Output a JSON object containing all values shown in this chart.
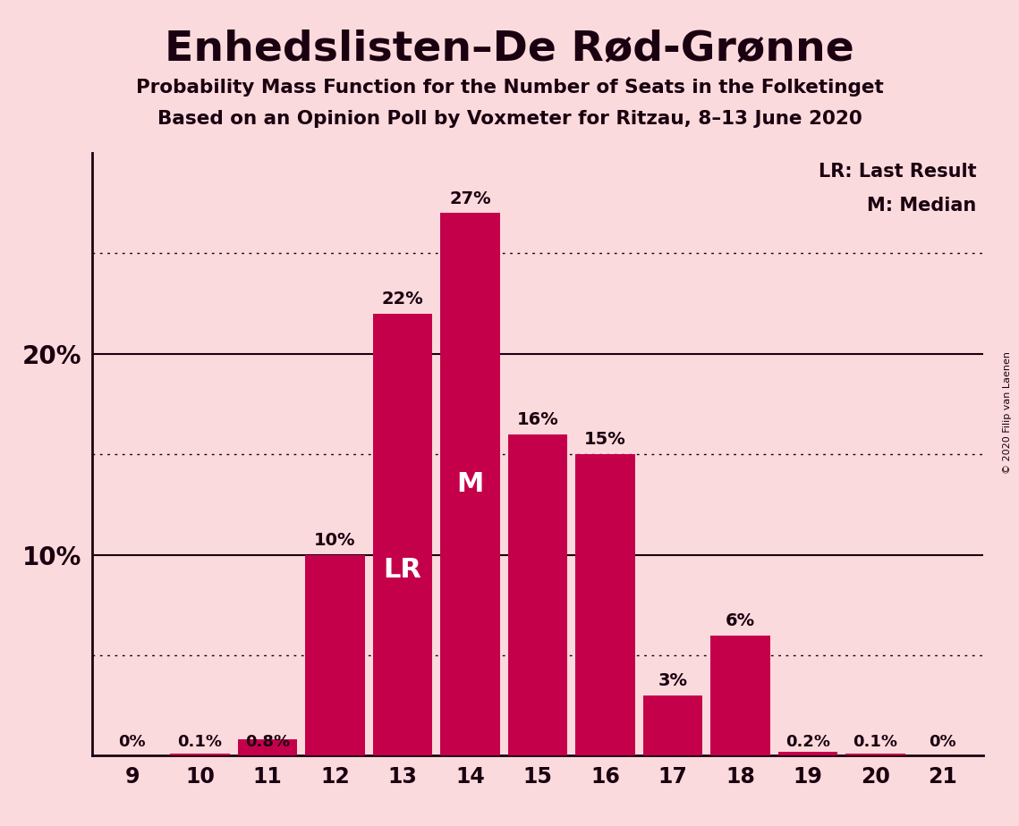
{
  "title": "Enhedslisten–De Rød-Grønne",
  "subtitle1": "Probability Mass Function for the Number of Seats in the Folketinget",
  "subtitle2": "Based on an Opinion Poll by Voxmeter for Ritzau, 8–13 June 2020",
  "copyright": "© 2020 Filip van Laenen",
  "seats": [
    9,
    10,
    11,
    12,
    13,
    14,
    15,
    16,
    17,
    18,
    19,
    20,
    21
  ],
  "probabilities": [
    0.0,
    0.1,
    0.8,
    10.0,
    22.0,
    27.0,
    16.0,
    15.0,
    3.0,
    6.0,
    0.2,
    0.1,
    0.0
  ],
  "labels": [
    "0%",
    "0.1%",
    "0.8%",
    "10%",
    "22%",
    "27%",
    "16%",
    "15%",
    "3%",
    "6%",
    "0.2%",
    "0.1%",
    "0%"
  ],
  "bar_color": "#C5004A",
  "background_color": "#FBDADD",
  "text_color": "#1a0010",
  "lr_seat": 13,
  "median_seat": 14,
  "ylim_max": 30,
  "yticks": [
    10,
    20
  ],
  "dotted_lines": [
    5,
    15,
    25
  ],
  "legend_lr": "LR: Last Result",
  "legend_m": "M: Median",
  "bar_width": 0.88
}
